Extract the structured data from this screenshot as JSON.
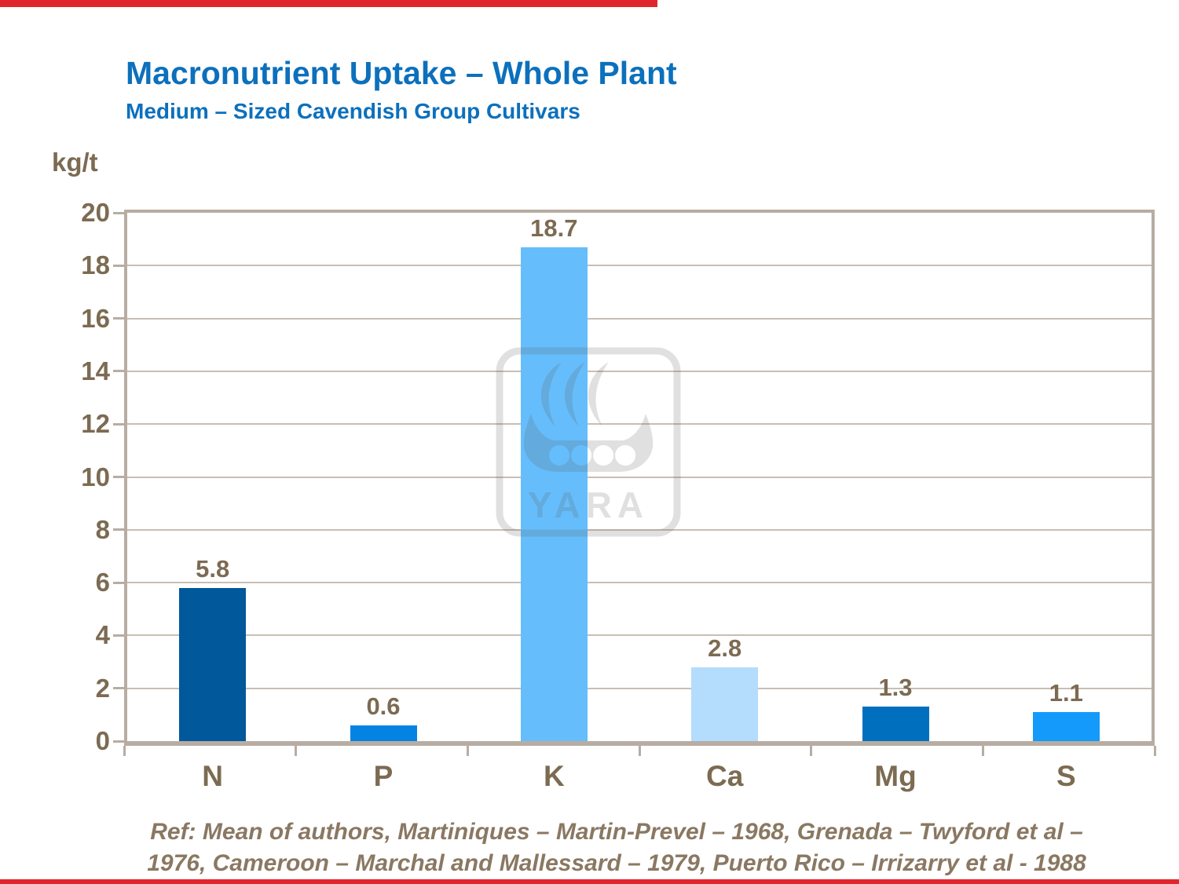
{
  "slide": {
    "title": "Macronutrient Uptake – Whole Plant",
    "subtitle": "Medium – Sized Cavendish Group Cultivars",
    "reference": {
      "line1": "Ref: Mean of authors, Martiniques – Martin-Prevel – 1968, Grenada – Twyford et al –",
      "line2": "1976, Cameroon – Marchal and Mallessard – 1979, Puerto Rico – Irrizarry et al - 1988"
    }
  },
  "chart_data": {
    "type": "bar",
    "title": "Macronutrient Uptake – Whole Plant",
    "subtitle": "Medium – Sized Cavendish Group Cultivars",
    "ylabel": "kg/t",
    "xlabel": "",
    "categories": [
      "N",
      "P",
      "K",
      "Ca",
      "Mg",
      "S"
    ],
    "values": [
      5.8,
      0.6,
      18.7,
      2.8,
      1.3,
      1.1
    ],
    "value_labels": [
      "5.8",
      "0.6",
      "18.7",
      "2.8",
      "1.3",
      "1.1"
    ],
    "bar_colors": [
      "#01589B",
      "#0483E3",
      "#66BDFB",
      "#B4DCFC",
      "#0070BE",
      "#149AFB"
    ],
    "ylim": [
      0,
      20
    ],
    "ytick_step": 2,
    "grid": true,
    "legend": false
  },
  "watermark": {
    "brand": "YARA"
  },
  "colors": {
    "accent_red": "#E0262C",
    "title_blue": "#0C70BC",
    "text_brown": "#7C6B52",
    "ref_brown": "#8A7862",
    "grid_line": "#C8BEB4",
    "axis_border": "#B8ADA2",
    "watermark_gray": "#5A5A5A"
  }
}
